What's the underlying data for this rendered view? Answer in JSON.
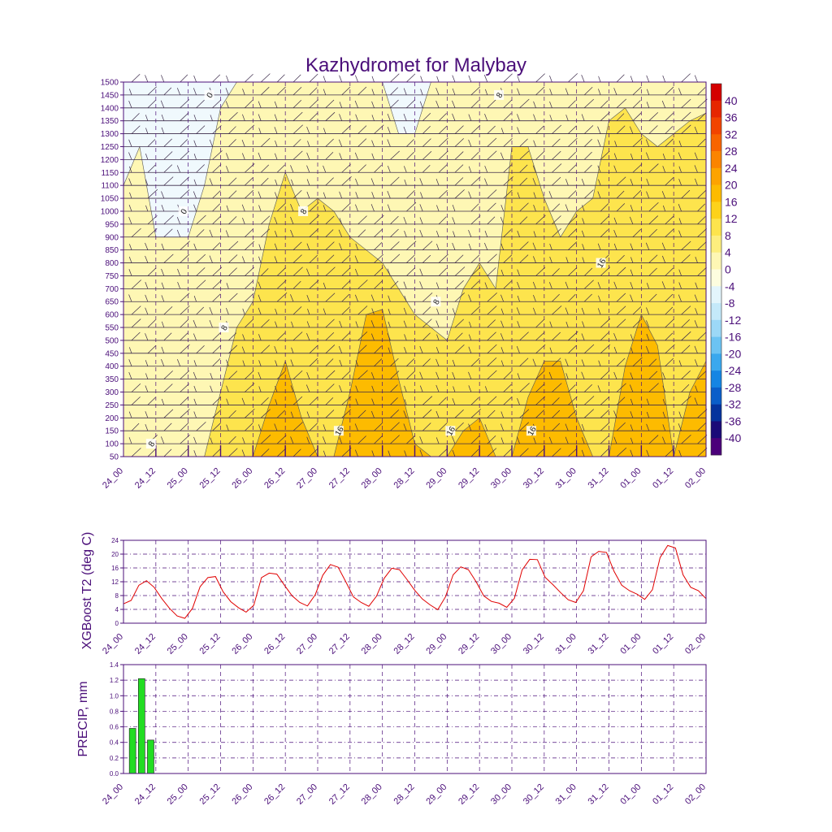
{
  "chart_data": [
    {
      "type": "heatmap",
      "title": "Kazhydromet for Malybay",
      "xlabel": "",
      "ylabel": "",
      "x_ticks": [
        "24_00",
        "24_12",
        "25_00",
        "25_12",
        "26_00",
        "26_12",
        "27_00",
        "27_12",
        "28_00",
        "28_12",
        "29_00",
        "29_12",
        "30_00",
        "30_12",
        "31_00",
        "31_12",
        "01_00",
        "01_12",
        "02_00"
      ],
      "y_ticks": [
        1500,
        1450,
        1400,
        1350,
        1300,
        1250,
        1200,
        1150,
        1100,
        1050,
        1000,
        950,
        900,
        850,
        800,
        750,
        700,
        650,
        600,
        550,
        500,
        450,
        400,
        350,
        300,
        250,
        200,
        150,
        100,
        50
      ],
      "ylim": [
        50,
        1500
      ],
      "colorbar": {
        "labels": [
          "40",
          "36",
          "32",
          "28",
          "24",
          "20",
          "16",
          "12",
          "8",
          "4",
          "0",
          "-4",
          "-8",
          "-12",
          "-16",
          "-20",
          "-24",
          "-28",
          "-32",
          "-36",
          "-40"
        ],
        "colors": [
          "#d40000",
          "#e62600",
          "#f24400",
          "#f86400",
          "#fb8400",
          "#fda300",
          "#fdbb00",
          "#fdd21a",
          "#fde44d",
          "#fdee7e",
          "#fef7b4",
          "#fdfddf",
          "#e3f5fc",
          "#c4e9fa",
          "#9cd8f7",
          "#6cc3f3",
          "#3aa8ee",
          "#1585e3",
          "#0a5ec9",
          "#05339d",
          "#1a0a78",
          "#4b007a"
        ]
      },
      "contour_labels": [
        {
          "text": "0",
          "x_index": 5.3,
          "level": 1450
        },
        {
          "text": "0",
          "x_index": 3.7,
          "level": 1000
        },
        {
          "text": "8",
          "x_index": 6.2,
          "level": 550
        },
        {
          "text": "8",
          "x_index": 11.1,
          "level": 1000
        },
        {
          "text": "8",
          "x_index": 19.3,
          "level": 650
        },
        {
          "text": "8",
          "x_index": 23.2,
          "level": 1450
        },
        {
          "text": "8",
          "x_index": 1.7,
          "level": 100
        },
        {
          "text": "16",
          "x_index": 13.3,
          "level": 150
        },
        {
          "text": "16",
          "x_index": 20.2,
          "level": 150
        },
        {
          "text": "16",
          "x_index": 25.2,
          "level": 150
        },
        {
          "text": "16",
          "x_index": 29.5,
          "level": 800
        }
      ],
      "temperature_profile": {
        "x_index": [
          0,
          1,
          2,
          3,
          4,
          5,
          6,
          7,
          8,
          9,
          10,
          11,
          12,
          13,
          14,
          15,
          16,
          17,
          18,
          19,
          20,
          21,
          22,
          23,
          24,
          25,
          26,
          27,
          28,
          29,
          30,
          31,
          32,
          33,
          34,
          35,
          36
        ],
        "iso_16_top": [
          0,
          0,
          0,
          0,
          0,
          0,
          0,
          0,
          0,
          250,
          420,
          200,
          0,
          0,
          300,
          600,
          620,
          350,
          100,
          0,
          0,
          150,
          200,
          0,
          0,
          280,
          420,
          420,
          200,
          0,
          0,
          400,
          600,
          480,
          0,
          300,
          420
        ],
        "iso_8_top": [
          0,
          0,
          0,
          0,
          0,
          0,
          300,
          550,
          650,
          950,
          1150,
          1000,
          1050,
          1000,
          900,
          850,
          800,
          700,
          600,
          550,
          500,
          700,
          800,
          700,
          1250,
          1250,
          1050,
          900,
          1000,
          1050,
          1350,
          1400,
          1300,
          1250,
          1300,
          1350,
          1380
        ],
        "iso_0_top": [
          1100,
          1250,
          900,
          900,
          900,
          1100,
          1400,
          1500,
          1500,
          1500,
          1500,
          1500,
          1500,
          1500,
          1500,
          1500,
          1500,
          1300,
          1300,
          1500,
          1500,
          1500,
          1500,
          1500,
          1500,
          1500,
          1500,
          1500,
          1500,
          1500,
          1500,
          1500,
          1500,
          1500,
          1500,
          1500,
          1500
        ]
      }
    },
    {
      "type": "line",
      "title": "",
      "xlabel": "",
      "ylabel": "XGBoost T2 (deg C)",
      "x_ticks": [
        "24_00",
        "24_12",
        "25_00",
        "25_12",
        "26_00",
        "26_12",
        "27_00",
        "27_12",
        "28_00",
        "28_12",
        "29_00",
        "29_12",
        "30_00",
        "30_12",
        "31_00",
        "31_12",
        "01_00",
        "01_12",
        "02_00"
      ],
      "y_ticks": [
        0,
        4,
        8,
        12,
        16,
        20,
        24
      ],
      "ylim": [
        0,
        24
      ],
      "series": [
        {
          "values": [
            5.6,
            6.6,
            11.0,
            12.3,
            10.4,
            7.1,
            4.3,
            2.1,
            1.4,
            4.3,
            10.6,
            13.2,
            13.5,
            9.1,
            6.2,
            4.5,
            3.2,
            5.2,
            13.2,
            14.5,
            14.2,
            11.0,
            7.9,
            6.0,
            5.0,
            8.2,
            13.9,
            17.0,
            16.2,
            12.0,
            7.6,
            6.0,
            4.9,
            7.8,
            13.0,
            15.9,
            15.5,
            12.6,
            9.5,
            7.0,
            5.3,
            3.9,
            7.6,
            14.0,
            16.3,
            15.5,
            12.0,
            7.9,
            6.3,
            5.8,
            4.6,
            7.2,
            15.4,
            18.5,
            18.4,
            13.3,
            11.2,
            8.9,
            6.8,
            6.0,
            9.4,
            19.2,
            20.8,
            20.5,
            15.0,
            11.0,
            9.4,
            8.4,
            6.9,
            9.7,
            19.0,
            22.5,
            21.8,
            14.0,
            10.4,
            9.4,
            7.1
          ],
          "color": "#e00000"
        }
      ]
    },
    {
      "type": "bar",
      "title": "",
      "xlabel": "",
      "ylabel": "PRECIP, mm",
      "x_ticks": [
        "24_00",
        "24_12",
        "25_00",
        "25_12",
        "26_00",
        "26_12",
        "27_00",
        "27_12",
        "28_00",
        "28_12",
        "29_00",
        "29_12",
        "30_00",
        "30_12",
        "31_00",
        "31_12",
        "01_00",
        "01_12",
        "02_00"
      ],
      "y_ticks": [
        "0.0",
        "0.2",
        "0.4",
        "0.6",
        "0.8",
        "1.0",
        "1.2",
        "1.4"
      ],
      "ylim": [
        0,
        1.4
      ],
      "x_index": [
        1,
        2,
        3
      ],
      "values": [
        0.58,
        1.22,
        0.43
      ],
      "color": "#22dd22"
    }
  ]
}
